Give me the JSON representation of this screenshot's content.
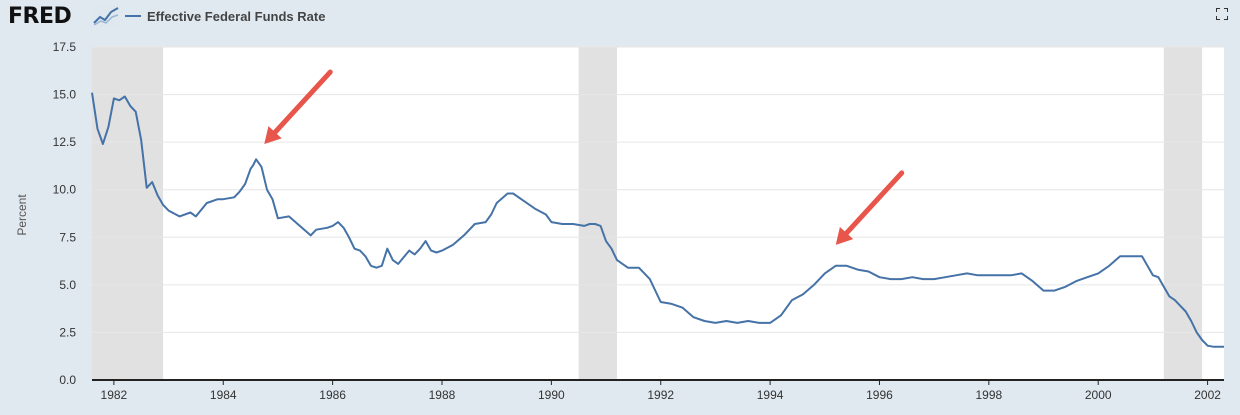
{
  "header": {
    "logo_text": "FRED",
    "logo_icon": "line-chart-icon",
    "legend_label": "Effective Federal Funds Rate",
    "fullscreen_icon": "fullscreen-icon"
  },
  "colors": {
    "series": "#4572a7",
    "recession": "#e1e1e1",
    "background": "#e1e9f0",
    "plot_bg": "#ffffff",
    "arrow": "#e8554a"
  },
  "chart_data": {
    "type": "line",
    "title": "",
    "xlabel": "",
    "ylabel": "Percent",
    "xlim": [
      1981.6,
      2002.3
    ],
    "ylim": [
      0,
      17.5
    ],
    "y_ticks": [
      0.0,
      2.5,
      5.0,
      7.5,
      10.0,
      12.5,
      15.0,
      17.5
    ],
    "y_tick_labels": [
      "0.0",
      "2.5",
      "5.0",
      "7.5",
      "10.0",
      "12.5",
      "15.0",
      "17.5"
    ],
    "x_ticks": [
      1982,
      1984,
      1986,
      1988,
      1990,
      1992,
      1994,
      1996,
      1998,
      2000,
      2002
    ],
    "x_tick_labels": [
      "1982",
      "1984",
      "1986",
      "1988",
      "1990",
      "1992",
      "1994",
      "1996",
      "1998",
      "2000",
      "2002"
    ],
    "grid": true,
    "legend": "top-left",
    "recessions": [
      [
        1981.6,
        1982.9
      ],
      [
        1990.5,
        1991.2
      ],
      [
        2001.2,
        2001.9
      ]
    ],
    "annotations": [
      {
        "type": "arrow",
        "points_to": [
          1984.75,
          12.4
        ]
      },
      {
        "type": "arrow",
        "points_to": [
          1995.2,
          7.1
        ]
      }
    ],
    "series": [
      {
        "name": "Effective Federal Funds Rate",
        "x": [
          1981.6,
          1981.7,
          1981.8,
          1981.9,
          1982.0,
          1982.1,
          1982.2,
          1982.3,
          1982.4,
          1982.5,
          1982.6,
          1982.7,
          1982.8,
          1982.9,
          1983.0,
          1983.2,
          1983.4,
          1983.5,
          1983.7,
          1983.9,
          1984.0,
          1984.2,
          1984.3,
          1984.4,
          1984.5,
          1984.55,
          1984.6,
          1984.7,
          1984.8,
          1984.9,
          1985.0,
          1985.2,
          1985.4,
          1985.6,
          1985.7,
          1985.9,
          1986.0,
          1986.1,
          1986.2,
          1986.3,
          1986.4,
          1986.5,
          1986.6,
          1986.7,
          1986.8,
          1986.9,
          1987.0,
          1987.1,
          1987.2,
          1987.4,
          1987.5,
          1987.6,
          1987.7,
          1987.8,
          1987.9,
          1988.0,
          1988.2,
          1988.4,
          1988.6,
          1988.8,
          1988.9,
          1989.0,
          1989.2,
          1989.3,
          1989.5,
          1989.7,
          1989.9,
          1990.0,
          1990.2,
          1990.4,
          1990.6,
          1990.7,
          1990.8,
          1990.9,
          1991.0,
          1991.1,
          1991.2,
          1991.3,
          1991.4,
          1991.6,
          1991.8,
          1992.0,
          1992.2,
          1992.4,
          1992.6,
          1992.8,
          1993.0,
          1993.2,
          1993.4,
          1993.6,
          1993.8,
          1994.0,
          1994.2,
          1994.4,
          1994.6,
          1994.8,
          1995.0,
          1995.2,
          1995.4,
          1995.6,
          1995.8,
          1996.0,
          1996.2,
          1996.4,
          1996.6,
          1996.8,
          1997.0,
          1997.2,
          1997.4,
          1997.6,
          1997.8,
          1998.0,
          1998.2,
          1998.4,
          1998.6,
          1998.8,
          1999.0,
          1999.2,
          1999.4,
          1999.6,
          1999.8,
          2000.0,
          2000.2,
          2000.4,
          2000.6,
          2000.8,
          2001.0,
          2001.1,
          2001.2,
          2001.3,
          2001.4,
          2001.5,
          2001.6,
          2001.7,
          2001.8,
          2001.9,
          2002.0,
          2002.1,
          2002.2,
          2002.3
        ],
        "values": [
          15.1,
          13.2,
          12.4,
          13.3,
          14.8,
          14.7,
          14.9,
          14.4,
          14.1,
          12.6,
          10.1,
          10.4,
          9.7,
          9.2,
          8.9,
          8.6,
          8.8,
          8.6,
          9.3,
          9.5,
          9.5,
          9.6,
          9.9,
          10.3,
          11.1,
          11.3,
          11.6,
          11.2,
          10.0,
          9.5,
          8.5,
          8.6,
          8.1,
          7.6,
          7.9,
          8.0,
          8.1,
          8.3,
          8.0,
          7.5,
          6.9,
          6.8,
          6.5,
          6.0,
          5.9,
          6.0,
          6.9,
          6.3,
          6.1,
          6.8,
          6.6,
          6.9,
          7.3,
          6.8,
          6.7,
          6.8,
          7.1,
          7.6,
          8.2,
          8.3,
          8.7,
          9.3,
          9.8,
          9.8,
          9.4,
          9.0,
          8.7,
          8.3,
          8.2,
          8.2,
          8.1,
          8.2,
          8.2,
          8.1,
          7.3,
          6.9,
          6.3,
          6.1,
          5.9,
          5.9,
          5.3,
          4.1,
          4.0,
          3.8,
          3.3,
          3.1,
          3.0,
          3.1,
          3.0,
          3.1,
          3.0,
          3.0,
          3.4,
          4.2,
          4.5,
          5.0,
          5.6,
          6.0,
          6.0,
          5.8,
          5.7,
          5.4,
          5.3,
          5.3,
          5.4,
          5.3,
          5.3,
          5.4,
          5.5,
          5.6,
          5.5,
          5.5,
          5.5,
          5.5,
          5.6,
          5.2,
          4.7,
          4.7,
          4.9,
          5.2,
          5.4,
          5.6,
          6.0,
          6.5,
          6.5,
          6.5,
          5.5,
          5.4,
          4.9,
          4.4,
          4.2,
          3.9,
          3.6,
          3.1,
          2.5,
          2.1,
          1.8,
          1.75,
          1.75,
          1.75
        ]
      }
    ]
  }
}
